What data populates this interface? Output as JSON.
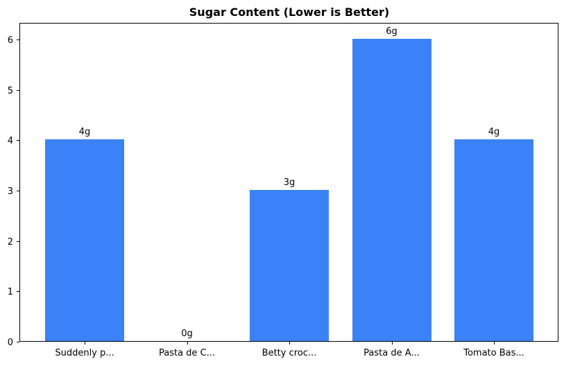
{
  "chart_data": {
    "type": "bar",
    "title": "Sugar Content (Lower is Better)",
    "categories": [
      "Suddenly p...",
      "Pasta de C...",
      "Betty croc...",
      "Pasta de A...",
      "Tomato Bas..."
    ],
    "values": [
      4,
      0,
      3,
      6,
      4
    ],
    "bar_labels": [
      "4g",
      "0g",
      "3g",
      "6g",
      "4g"
    ],
    "xlabel": "",
    "ylabel": "",
    "yticks": [
      0,
      1,
      2,
      3,
      4,
      5,
      6
    ],
    "ylim": [
      0,
      6.3
    ],
    "grid": false,
    "legend": "none",
    "bar_color": "#3b82f6",
    "axis_color": "#000000",
    "text_color": "#000000"
  }
}
